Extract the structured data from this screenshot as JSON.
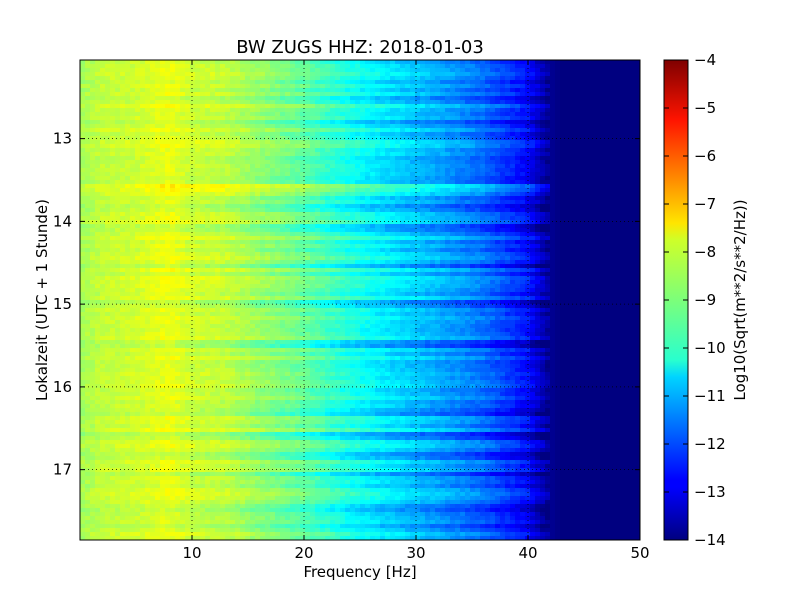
{
  "chart_data": {
    "type": "heatmap",
    "title": "BW ZUGS HHZ: 2018-01-03",
    "xlabel": "Frequency [Hz]",
    "ylabel": "Lokalzeit (UTC + 1 Stunde)",
    "xlim": [
      0,
      50
    ],
    "ylim": [
      12.05,
      17.85
    ],
    "y_inverted": true,
    "x_ticks": [
      10,
      20,
      30,
      40,
      50
    ],
    "y_ticks": [
      13,
      14,
      15,
      16,
      17
    ],
    "grid": true,
    "colormap": "jet",
    "colorbar": {
      "label": "Log10(Sqrt(m**2/s**2/Hz))",
      "range": [
        -14,
        -4
      ],
      "ticks": [
        -4,
        -5,
        -6,
        -7,
        -8,
        -9,
        -10,
        -11,
        -12,
        -13,
        -14
      ]
    },
    "frequency_profile": {
      "frequencies_hz": [
        0,
        2,
        5,
        8,
        10,
        13,
        16,
        20,
        24,
        28,
        32,
        36,
        38,
        40,
        41,
        42,
        43,
        45,
        50
      ],
      "log10_amplitude": [
        -8.6,
        -8.3,
        -8.2,
        -7.9,
        -8.2,
        -8.3,
        -8.7,
        -9.2,
        -9.9,
        -10.5,
        -11.0,
        -11.6,
        -12.1,
        -12.6,
        -13.2,
        -13.8,
        -14.0,
        -14.0,
        -14.0
      ]
    },
    "time_bands": [
      {
        "time": 12.55,
        "offset": -0.4
      },
      {
        "time": 12.8,
        "offset": -0.5
      },
      {
        "time": 13.6,
        "offset": 0.5
      },
      {
        "time": 13.85,
        "offset": -0.4
      },
      {
        "time": 14.1,
        "offset": -0.4
      },
      {
        "time": 14.5,
        "offset": -0.3
      },
      {
        "time": 15.0,
        "offset": -0.5
      },
      {
        "time": 15.5,
        "offset": -0.6
      },
      {
        "time": 16.3,
        "offset": -0.3
      },
      {
        "time": 16.6,
        "offset": -0.5
      },
      {
        "time": 16.85,
        "offset": -0.6
      },
      {
        "time": 17.05,
        "offset": -0.4
      },
      {
        "time": 17.45,
        "offset": -0.4
      },
      {
        "time": 17.7,
        "offset": -0.3
      }
    ]
  }
}
